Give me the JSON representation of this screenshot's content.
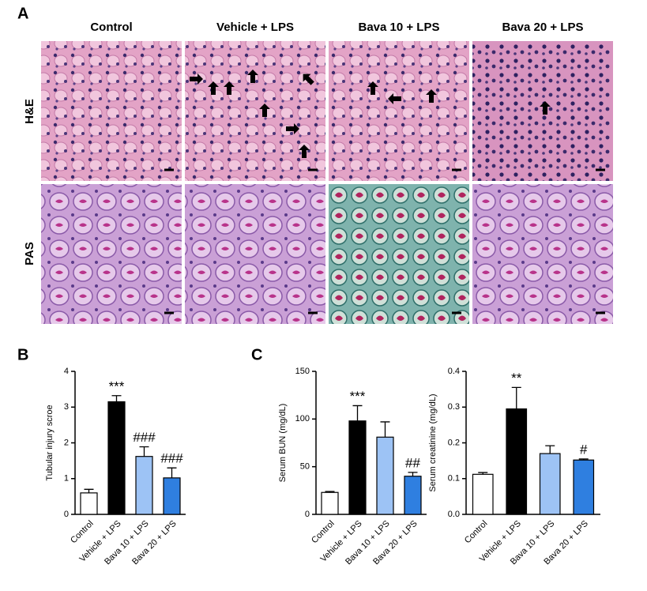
{
  "figure": {
    "panel_labels": [
      "A",
      "B",
      "C"
    ],
    "columns": [
      "Control",
      "Vehicle + LPS",
      "Bava 10 + LPS",
      "Bava 20 + LPS"
    ],
    "rows": [
      "H&E",
      "PAS"
    ]
  },
  "chart_data": [
    {
      "type": "bar",
      "y_label": "Tubular injury scroe",
      "categories": [
        "Control",
        "Vehicle + LPS",
        "Bava 10 + LPS",
        "Bava 20 + LPS"
      ],
      "values": [
        0.6,
        3.15,
        1.62,
        1.02
      ],
      "errors": [
        0.1,
        0.17,
        0.27,
        0.28
      ],
      "annotations": [
        null,
        "***",
        "###",
        "###"
      ],
      "colors": [
        "#ffffff",
        "#000000",
        "#9dc3f5",
        "#2f7fe0"
      ],
      "ylim": [
        0,
        4
      ],
      "yticks": [
        0,
        1,
        2,
        3,
        4
      ]
    },
    {
      "type": "bar",
      "y_label": "Serum BUN (mg/dL)",
      "categories": [
        "Control",
        "Vehicle + LPS",
        "Bava 10 + LPS",
        "Bava 20 + LPS"
      ],
      "values": [
        23,
        98,
        81,
        40
      ],
      "errors": [
        1,
        16,
        16,
        4
      ],
      "annotations": [
        null,
        "***",
        null,
        "##"
      ],
      "colors": [
        "#ffffff",
        "#000000",
        "#9dc3f5",
        "#2f7fe0"
      ],
      "ylim": [
        0,
        150
      ],
      "yticks": [
        0,
        50,
        100,
        150
      ]
    },
    {
      "type": "bar",
      "y_label": "Serum creatinine (mg/dL)",
      "categories": [
        "Control",
        "Vehicle + LPS",
        "Bava 10 + LPS",
        "Bava 20 + LPS"
      ],
      "values": [
        0.112,
        0.295,
        0.17,
        0.152
      ],
      "errors": [
        0.005,
        0.06,
        0.022,
        0.003
      ],
      "annotations": [
        null,
        "**",
        null,
        "#"
      ],
      "colors": [
        "#ffffff",
        "#000000",
        "#9dc3f5",
        "#2f7fe0"
      ],
      "ylim": [
        0,
        0.4
      ],
      "yticks": [
        {
          "value": 0,
          "label": "0.0"
        },
        0.1,
        0.2,
        0.3,
        0.4
      ]
    }
  ]
}
